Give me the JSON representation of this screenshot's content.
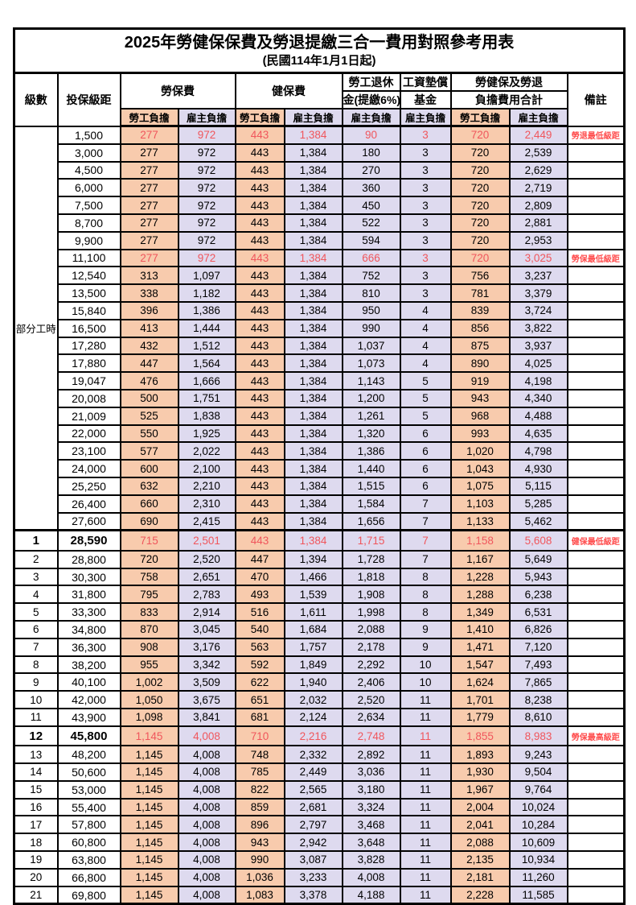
{
  "title": "2025年勞健保保費及勞退提繳三合一費用對照參考用表",
  "subtitle": "(民國114年1月1日起)",
  "header": {
    "level": "級數",
    "bracket": "投保級距",
    "labor_fee": "勞保費",
    "health_fee": "健保費",
    "pension_line1": "勞工退休",
    "pension_line2": "金(提繳6%)",
    "wage_fund_line1": "工資墊償",
    "wage_fund_line2": "基金",
    "total_line1": "勞健保及勞退",
    "total_line2": "負擔費用合計",
    "remark": "備註",
    "worker": "勞工負擔",
    "employer": "雇主負擔"
  },
  "part_time_label": "部分工時",
  "colors": {
    "worker_bg": "#F8CBAD",
    "employer_bg": "#DEDAEF",
    "highlight_red": "#F0565C",
    "remark_red": "#FF4D4D"
  },
  "rows": [
    {
      "level": "",
      "bracket": "1,500",
      "cells": [
        "277",
        "972",
        "443",
        "1,384",
        "90",
        "3",
        "720",
        "2,449"
      ],
      "remark": "勞退最低級距",
      "red": true,
      "bold": false
    },
    {
      "level": "",
      "bracket": "3,000",
      "cells": [
        "277",
        "972",
        "443",
        "1,384",
        "180",
        "3",
        "720",
        "2,539"
      ],
      "remark": "",
      "red": false,
      "bold": false
    },
    {
      "level": "",
      "bracket": "4,500",
      "cells": [
        "277",
        "972",
        "443",
        "1,384",
        "270",
        "3",
        "720",
        "2,629"
      ],
      "remark": "",
      "red": false,
      "bold": false
    },
    {
      "level": "",
      "bracket": "6,000",
      "cells": [
        "277",
        "972",
        "443",
        "1,384",
        "360",
        "3",
        "720",
        "2,719"
      ],
      "remark": "",
      "red": false,
      "bold": false
    },
    {
      "level": "",
      "bracket": "7,500",
      "cells": [
        "277",
        "972",
        "443",
        "1,384",
        "450",
        "3",
        "720",
        "2,809"
      ],
      "remark": "",
      "red": false,
      "bold": false
    },
    {
      "level": "",
      "bracket": "8,700",
      "cells": [
        "277",
        "972",
        "443",
        "1,384",
        "522",
        "3",
        "720",
        "2,881"
      ],
      "remark": "",
      "red": false,
      "bold": false
    },
    {
      "level": "",
      "bracket": "9,900",
      "cells": [
        "277",
        "972",
        "443",
        "1,384",
        "594",
        "3",
        "720",
        "2,953"
      ],
      "remark": "",
      "red": false,
      "bold": false
    },
    {
      "level": "",
      "bracket": "11,100",
      "cells": [
        "277",
        "972",
        "443",
        "1,384",
        "666",
        "3",
        "720",
        "3,025"
      ],
      "remark": "勞保最低級距",
      "red": true,
      "bold": false
    },
    {
      "level": "",
      "bracket": "12,540",
      "cells": [
        "313",
        "1,097",
        "443",
        "1,384",
        "752",
        "3",
        "756",
        "3,237"
      ],
      "remark": "",
      "red": false,
      "bold": false
    },
    {
      "level": "",
      "bracket": "13,500",
      "cells": [
        "338",
        "1,182",
        "443",
        "1,384",
        "810",
        "3",
        "781",
        "3,379"
      ],
      "remark": "",
      "red": false,
      "bold": false
    },
    {
      "level": "",
      "bracket": "15,840",
      "cells": [
        "396",
        "1,386",
        "443",
        "1,384",
        "950",
        "4",
        "839",
        "3,724"
      ],
      "remark": "",
      "red": false,
      "bold": false
    },
    {
      "level": "",
      "bracket": "16,500",
      "cells": [
        "413",
        "1,444",
        "443",
        "1,384",
        "990",
        "4",
        "856",
        "3,822"
      ],
      "remark": "",
      "red": false,
      "bold": false
    },
    {
      "level": "",
      "bracket": "17,280",
      "cells": [
        "432",
        "1,512",
        "443",
        "1,384",
        "1,037",
        "4",
        "875",
        "3,937"
      ],
      "remark": "",
      "red": false,
      "bold": false
    },
    {
      "level": "",
      "bracket": "17,880",
      "cells": [
        "447",
        "1,564",
        "443",
        "1,384",
        "1,073",
        "4",
        "890",
        "4,025"
      ],
      "remark": "",
      "red": false,
      "bold": false
    },
    {
      "level": "",
      "bracket": "19,047",
      "cells": [
        "476",
        "1,666",
        "443",
        "1,384",
        "1,143",
        "5",
        "919",
        "4,198"
      ],
      "remark": "",
      "red": false,
      "bold": false
    },
    {
      "level": "",
      "bracket": "20,008",
      "cells": [
        "500",
        "1,751",
        "443",
        "1,384",
        "1,200",
        "5",
        "943",
        "4,340"
      ],
      "remark": "",
      "red": false,
      "bold": false
    },
    {
      "level": "",
      "bracket": "21,009",
      "cells": [
        "525",
        "1,838",
        "443",
        "1,384",
        "1,261",
        "5",
        "968",
        "4,488"
      ],
      "remark": "",
      "red": false,
      "bold": false
    },
    {
      "level": "",
      "bracket": "22,000",
      "cells": [
        "550",
        "1,925",
        "443",
        "1,384",
        "1,320",
        "6",
        "993",
        "4,635"
      ],
      "remark": "",
      "red": false,
      "bold": false
    },
    {
      "level": "",
      "bracket": "23,100",
      "cells": [
        "577",
        "2,022",
        "443",
        "1,384",
        "1,386",
        "6",
        "1,020",
        "4,798"
      ],
      "remark": "",
      "red": false,
      "bold": false
    },
    {
      "level": "",
      "bracket": "24,000",
      "cells": [
        "600",
        "2,100",
        "443",
        "1,384",
        "1,440",
        "6",
        "1,043",
        "4,930"
      ],
      "remark": "",
      "red": false,
      "bold": false
    },
    {
      "level": "",
      "bracket": "25,250",
      "cells": [
        "632",
        "2,210",
        "443",
        "1,384",
        "1,515",
        "6",
        "1,075",
        "5,115"
      ],
      "remark": "",
      "red": false,
      "bold": false
    },
    {
      "level": "",
      "bracket": "26,400",
      "cells": [
        "660",
        "2,310",
        "443",
        "1,384",
        "1,584",
        "7",
        "1,103",
        "5,285"
      ],
      "remark": "",
      "red": false,
      "bold": false
    },
    {
      "level": "",
      "bracket": "27,600",
      "cells": [
        "690",
        "2,415",
        "443",
        "1,384",
        "1,656",
        "7",
        "1,133",
        "5,462"
      ],
      "remark": "",
      "red": false,
      "bold": false
    },
    {
      "level": "1",
      "bracket": "28,590",
      "cells": [
        "715",
        "2,501",
        "443",
        "1,384",
        "1,715",
        "7",
        "1,158",
        "5,608"
      ],
      "remark": "健保最低級距",
      "red": true,
      "bold": true
    },
    {
      "level": "2",
      "bracket": "28,800",
      "cells": [
        "720",
        "2,520",
        "447",
        "1,394",
        "1,728",
        "7",
        "1,167",
        "5,649"
      ],
      "remark": "",
      "red": false,
      "bold": false
    },
    {
      "level": "3",
      "bracket": "30,300",
      "cells": [
        "758",
        "2,651",
        "470",
        "1,466",
        "1,818",
        "8",
        "1,228",
        "5,943"
      ],
      "remark": "",
      "red": false,
      "bold": false
    },
    {
      "level": "4",
      "bracket": "31,800",
      "cells": [
        "795",
        "2,783",
        "493",
        "1,539",
        "1,908",
        "8",
        "1,288",
        "6,238"
      ],
      "remark": "",
      "red": false,
      "bold": false
    },
    {
      "level": "5",
      "bracket": "33,300",
      "cells": [
        "833",
        "2,914",
        "516",
        "1,611",
        "1,998",
        "8",
        "1,349",
        "6,531"
      ],
      "remark": "",
      "red": false,
      "bold": false
    },
    {
      "level": "6",
      "bracket": "34,800",
      "cells": [
        "870",
        "3,045",
        "540",
        "1,684",
        "2,088",
        "9",
        "1,410",
        "6,826"
      ],
      "remark": "",
      "red": false,
      "bold": false
    },
    {
      "level": "7",
      "bracket": "36,300",
      "cells": [
        "908",
        "3,176",
        "563",
        "1,757",
        "2,178",
        "9",
        "1,471",
        "7,120"
      ],
      "remark": "",
      "red": false,
      "bold": false
    },
    {
      "level": "8",
      "bracket": "38,200",
      "cells": [
        "955",
        "3,342",
        "592",
        "1,849",
        "2,292",
        "10",
        "1,547",
        "7,493"
      ],
      "remark": "",
      "red": false,
      "bold": false
    },
    {
      "level": "9",
      "bracket": "40,100",
      "cells": [
        "1,002",
        "3,509",
        "622",
        "1,940",
        "2,406",
        "10",
        "1,624",
        "7,865"
      ],
      "remark": "",
      "red": false,
      "bold": false
    },
    {
      "level": "10",
      "bracket": "42,000",
      "cells": [
        "1,050",
        "3,675",
        "651",
        "2,032",
        "2,520",
        "11",
        "1,701",
        "8,238"
      ],
      "remark": "",
      "red": false,
      "bold": false
    },
    {
      "level": "11",
      "bracket": "43,900",
      "cells": [
        "1,098",
        "3,841",
        "681",
        "2,124",
        "2,634",
        "11",
        "1,779",
        "8,610"
      ],
      "remark": "",
      "red": false,
      "bold": false
    },
    {
      "level": "12",
      "bracket": "45,800",
      "cells": [
        "1,145",
        "4,008",
        "710",
        "2,216",
        "2,748",
        "11",
        "1,855",
        "8,983"
      ],
      "remark": "勞保最高級距",
      "red": true,
      "bold": true
    },
    {
      "level": "13",
      "bracket": "48,200",
      "cells": [
        "1,145",
        "4,008",
        "748",
        "2,332",
        "2,892",
        "11",
        "1,893",
        "9,243"
      ],
      "remark": "",
      "red": false,
      "bold": false
    },
    {
      "level": "14",
      "bracket": "50,600",
      "cells": [
        "1,145",
        "4,008",
        "785",
        "2,449",
        "3,036",
        "11",
        "1,930",
        "9,504"
      ],
      "remark": "",
      "red": false,
      "bold": false
    },
    {
      "level": "15",
      "bracket": "53,000",
      "cells": [
        "1,145",
        "4,008",
        "822",
        "2,565",
        "3,180",
        "11",
        "1,967",
        "9,764"
      ],
      "remark": "",
      "red": false,
      "bold": false
    },
    {
      "level": "16",
      "bracket": "55,400",
      "cells": [
        "1,145",
        "4,008",
        "859",
        "2,681",
        "3,324",
        "11",
        "2,004",
        "10,024"
      ],
      "remark": "",
      "red": false,
      "bold": false
    },
    {
      "level": "17",
      "bracket": "57,800",
      "cells": [
        "1,145",
        "4,008",
        "896",
        "2,797",
        "3,468",
        "11",
        "2,041",
        "10,284"
      ],
      "remark": "",
      "red": false,
      "bold": false
    },
    {
      "level": "18",
      "bracket": "60,800",
      "cells": [
        "1,145",
        "4,008",
        "943",
        "2,942",
        "3,648",
        "11",
        "2,088",
        "10,609"
      ],
      "remark": "",
      "red": false,
      "bold": false
    },
    {
      "level": "19",
      "bracket": "63,800",
      "cells": [
        "1,145",
        "4,008",
        "990",
        "3,087",
        "3,828",
        "11",
        "2,135",
        "10,934"
      ],
      "remark": "",
      "red": false,
      "bold": false
    },
    {
      "level": "20",
      "bracket": "66,800",
      "cells": [
        "1,145",
        "4,008",
        "1,036",
        "3,233",
        "4,008",
        "11",
        "2,181",
        "11,260"
      ],
      "remark": "",
      "red": false,
      "bold": false
    },
    {
      "level": "21",
      "bracket": "69,800",
      "cells": [
        "1,145",
        "4,008",
        "1,083",
        "3,378",
        "4,188",
        "11",
        "2,228",
        "11,585"
      ],
      "remark": "",
      "red": false,
      "bold": false
    }
  ]
}
